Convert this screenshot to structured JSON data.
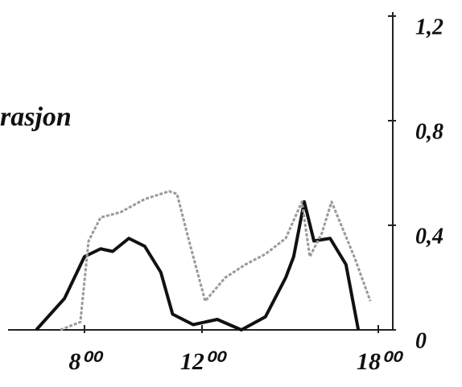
{
  "chart_data": {
    "type": "line",
    "title": "rasjon",
    "xlim": [
      5.4,
      18
    ],
    "ylim": [
      0,
      1.2
    ],
    "xticks": [
      {
        "value": 8,
        "label": "8⁰⁰"
      },
      {
        "value": 12,
        "label": "12⁰⁰"
      },
      {
        "value": 18,
        "label": "18⁰⁰"
      }
    ],
    "yticks": [
      0,
      {
        "value": 0.4,
        "label": "0,4"
      },
      {
        "value": 0.8,
        "label": "0,8"
      },
      {
        "value": 1.2,
        "label": "1,2"
      }
    ],
    "series": [
      {
        "color": "#111111",
        "dash": false,
        "x": [
          6.36,
          7.32,
          8.0,
          8.55,
          8.96,
          9.51,
          10.05,
          10.6,
          11.0,
          11.7,
          12.52,
          13.34,
          14.16,
          14.85,
          15.12,
          15.48,
          15.81,
          16.36,
          16.9,
          17.32
        ],
        "values": [
          0,
          0.12,
          0.28,
          0.31,
          0.3,
          0.35,
          0.32,
          0.22,
          0.06,
          0.02,
          0.04,
          0,
          0.05,
          0.2,
          0.28,
          0.49,
          0.34,
          0.35,
          0.25,
          0
        ]
      },
      {
        "color": "#9a9a9a",
        "dash": true,
        "x": [
          7.18,
          7.86,
          8.14,
          8.55,
          9.23,
          10.05,
          10.88,
          11.15,
          11.56,
          12.11,
          12.79,
          13.48,
          14.16,
          14.85,
          15.4,
          15.67,
          16.08,
          16.41,
          17.18,
          17.73
        ],
        "values": [
          0,
          0.03,
          0.34,
          0.43,
          0.45,
          0.5,
          0.53,
          0.52,
          0.34,
          0.11,
          0.2,
          0.25,
          0.29,
          0.35,
          0.49,
          0.28,
          0.37,
          0.49,
          0.28,
          0.11
        ]
      }
    ]
  }
}
